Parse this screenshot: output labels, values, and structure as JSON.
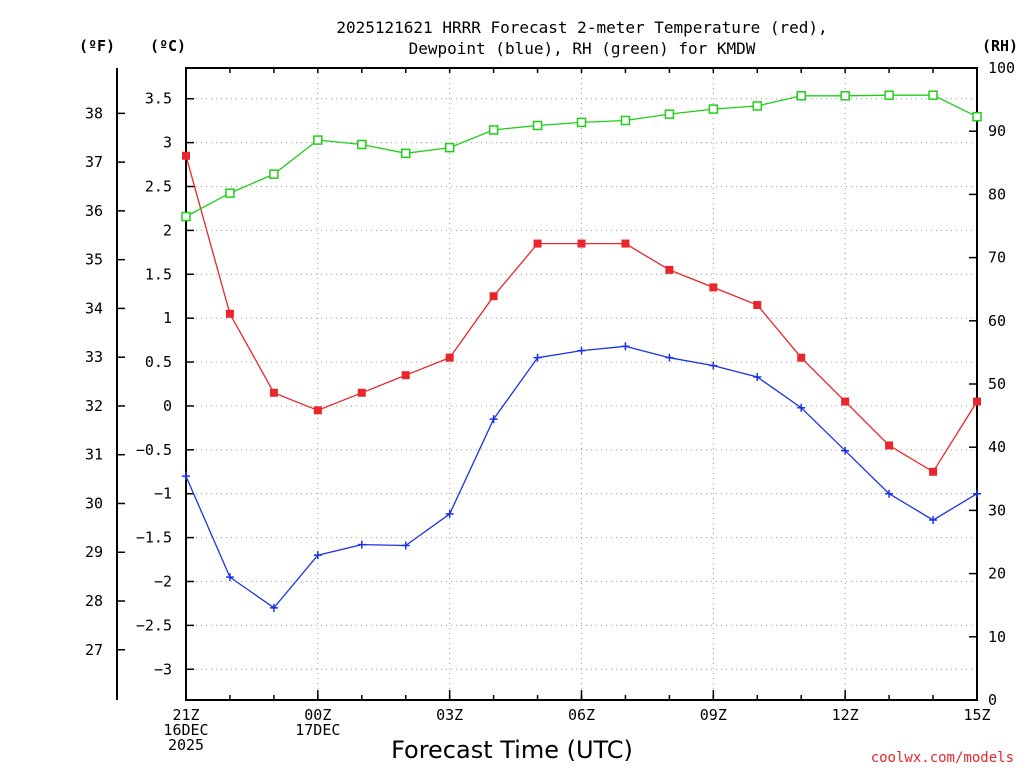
{
  "title_line1": "2025121621 HRRR Forecast 2-meter Temperature (red),",
  "title_line2": "Dewpoint (blue), RH (green) for KMDW",
  "credit": "coolwx.com/models",
  "colors": {
    "temperature": "#e8262b",
    "dewpoint": "#1a32e6",
    "rh": "#1ed016"
  },
  "chart_data": {
    "type": "line",
    "title": "2025121621 HRRR Forecast 2-meter Temperature (red), Dewpoint (blue), RH (green) for KMDW",
    "xlabel": "Forecast Time (UTC)",
    "x": [
      0,
      1,
      2,
      3,
      4,
      5,
      6,
      7,
      8,
      9,
      10,
      11,
      12,
      13,
      14,
      15,
      16,
      17,
      18
    ],
    "xlim": [
      0,
      18
    ],
    "x_ticks": [
      {
        "x": 0,
        "lines": [
          "21Z",
          "16DEC",
          "2025"
        ]
      },
      {
        "x": 3,
        "lines": [
          "00Z",
          "17DEC"
        ]
      },
      {
        "x": 6,
        "lines": [
          "03Z"
        ]
      },
      {
        "x": 9,
        "lines": [
          "06Z"
        ]
      },
      {
        "x": 12,
        "lines": [
          "09Z"
        ]
      },
      {
        "x": 15,
        "lines": [
          "12Z"
        ]
      },
      {
        "x": 18,
        "lines": [
          "15Z"
        ]
      }
    ],
    "y_left_c": {
      "label": "(ºC)",
      "range": [
        -3.35,
        3.85
      ],
      "ticks": [
        "-3",
        "-2.5",
        "-2",
        "-1.5",
        "-1",
        "-0.5",
        "0",
        "0.5",
        "1",
        "1.5",
        "2",
        "2.5",
        "3",
        "3.5"
      ]
    },
    "y_left_f": {
      "label": "(ºF)",
      "ticks": [
        "27",
        "28",
        "29",
        "30",
        "31",
        "32",
        "33",
        "34",
        "35",
        "36",
        "37",
        "38"
      ]
    },
    "y_right_rh": {
      "label": "(RH)",
      "range": [
        0,
        100
      ],
      "ticks": [
        "0",
        "10",
        "20",
        "30",
        "40",
        "50",
        "60",
        "70",
        "80",
        "90",
        "100"
      ]
    },
    "series": [
      {
        "name": "Temperature",
        "axis": "c",
        "marker": "filled-square",
        "values": [
          2.85,
          1.05,
          0.15,
          -0.05,
          0.15,
          0.35,
          0.55,
          1.25,
          1.85,
          1.85,
          1.85,
          1.55,
          1.35,
          1.15,
          0.55,
          0.05,
          -0.45,
          -0.75,
          0.05
        ]
      },
      {
        "name": "Dewpoint",
        "axis": "c",
        "marker": "plus",
        "values": [
          -0.8,
          -1.95,
          -2.3,
          -1.7,
          -1.58,
          -1.59,
          -1.23,
          -0.15,
          0.55,
          0.63,
          0.68,
          0.55,
          0.46,
          0.33,
          -0.02,
          -0.51,
          -1.0,
          -1.3,
          -1.0
        ]
      },
      {
        "name": "RH",
        "axis": "rh",
        "marker": "open-square",
        "values": [
          76.5,
          80.2,
          83.2,
          88.6,
          87.9,
          86.5,
          87.4,
          90.2,
          90.9,
          91.4,
          91.7,
          92.7,
          93.5,
          94.0,
          95.6,
          95.6,
          95.7,
          95.7,
          92.3
        ]
      }
    ]
  }
}
